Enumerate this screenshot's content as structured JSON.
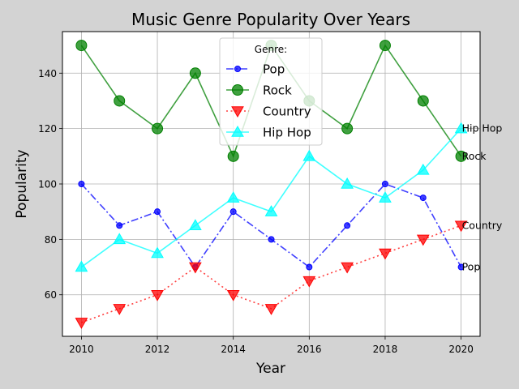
{
  "chart_data": {
    "type": "line",
    "title": "Music Genre Popularity Over Years",
    "xlabel": "Year",
    "ylabel": "Popularity",
    "x": [
      2010,
      2011,
      2012,
      2013,
      2014,
      2015,
      2016,
      2017,
      2018,
      2019,
      2020
    ],
    "xlim": [
      2009.5,
      2020.5
    ],
    "ylim": [
      45,
      155
    ],
    "xticks": [
      2010,
      2012,
      2014,
      2016,
      2018,
      2020
    ],
    "yticks": [
      60,
      80,
      100,
      120,
      140
    ],
    "grid": true,
    "legend": {
      "title": "Genre:",
      "position": "top-center"
    },
    "series": [
      {
        "name": "Pop",
        "color": "#0000ff",
        "line_style": "dashdot",
        "marker": "circle",
        "values": [
          100,
          85,
          90,
          70,
          90,
          80,
          70,
          85,
          100,
          95,
          70
        ]
      },
      {
        "name": "Rock",
        "color": "#008000",
        "line_style": "solid",
        "marker": "circle-large",
        "values": [
          150,
          130,
          120,
          140,
          110,
          150,
          130,
          120,
          150,
          130,
          110
        ]
      },
      {
        "name": "Country",
        "color": "#ff0000",
        "line_style": "dotted",
        "marker": "triangle-down",
        "values": [
          50,
          55,
          60,
          70,
          60,
          55,
          65,
          70,
          75,
          80,
          85
        ]
      },
      {
        "name": "Hip Hop",
        "color": "#00ffff",
        "line_style": "solid",
        "marker": "triangle-up",
        "values": [
          70,
          80,
          75,
          85,
          95,
          90,
          110,
          100,
          95,
          105,
          120
        ]
      }
    ],
    "end_labels": [
      "Pop",
      "Rock",
      "Country",
      "Hip Hop"
    ]
  }
}
